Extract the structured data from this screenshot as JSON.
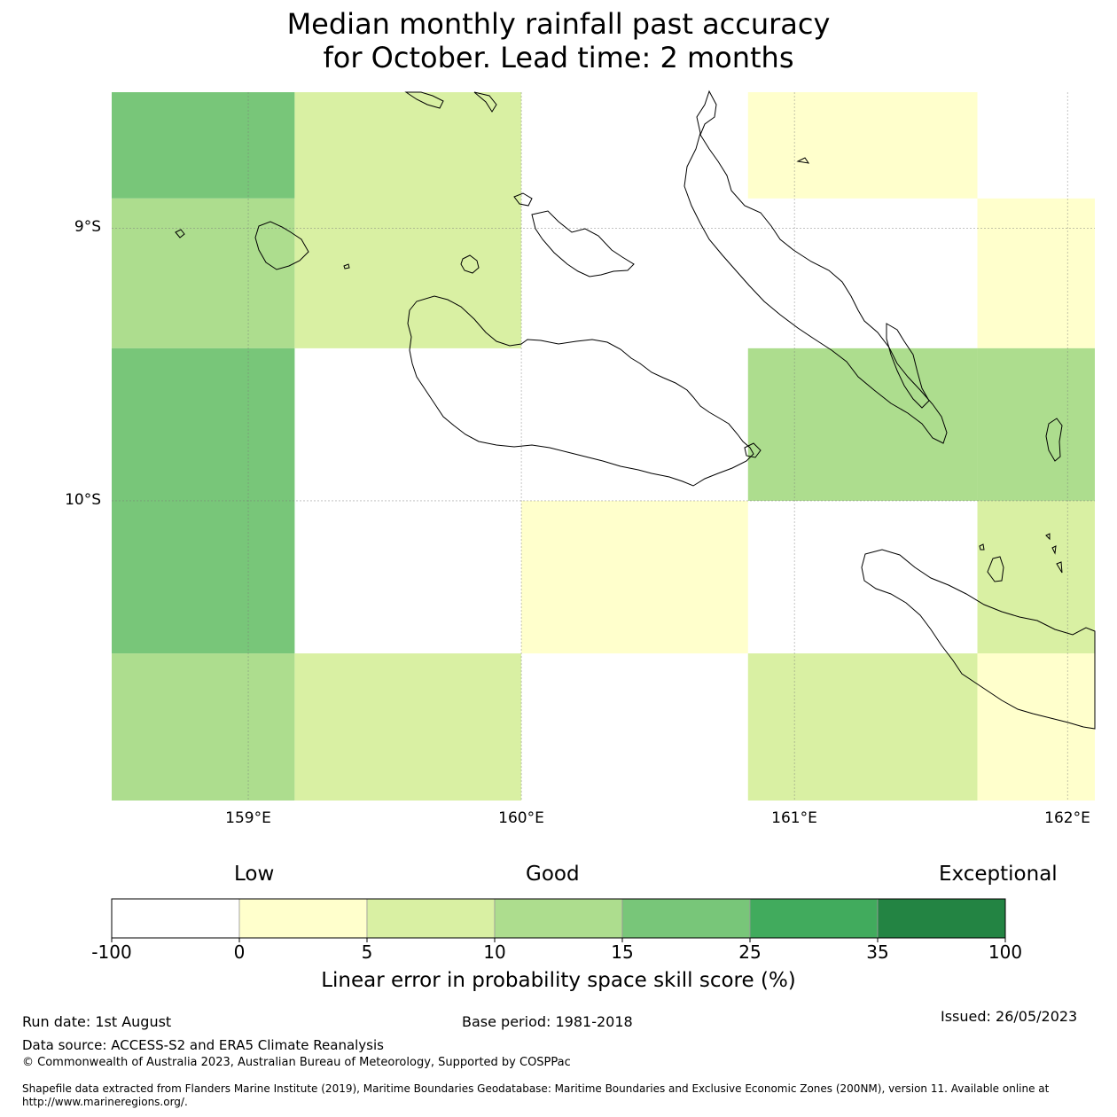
{
  "title": {
    "line1": "Median monthly rainfall past accuracy",
    "line2": "for October. Lead time: 2 months"
  },
  "map": {
    "lat_labels": [
      "9°S",
      "10°S"
    ],
    "lon_labels": [
      "159°E",
      "160°E",
      "161°E",
      "162°E"
    ],
    "lon_values": [
      159,
      160,
      161,
      162
    ],
    "lat_values": [
      -9,
      -10
    ],
    "lon_range": [
      158.5,
      162.1
    ],
    "lat_range": [
      -11.1,
      -8.5
    ],
    "cells": [
      {
        "lon": [
          158.5,
          159.17
        ],
        "lat": [
          -8.89,
          -8.5
        ],
        "bin": 4
      },
      {
        "lon": [
          158.5,
          159.17
        ],
        "lat": [
          -9.44,
          -8.89
        ],
        "bin": 3
      },
      {
        "lon": [
          158.5,
          159.17
        ],
        "lat": [
          -10.56,
          -9.44
        ],
        "bin": 4
      },
      {
        "lon": [
          158.5,
          159.17
        ],
        "lat": [
          -11.1,
          -10.56
        ],
        "bin": 3
      },
      {
        "lon": [
          159.17,
          160.0
        ],
        "lat": [
          -9.44,
          -8.5
        ],
        "bin": 2
      },
      {
        "lon": [
          159.17,
          160.0
        ],
        "lat": [
          -11.1,
          -10.56
        ],
        "bin": 2
      },
      {
        "lon": [
          160.0,
          160.83
        ],
        "lat": [
          -10.56,
          -10.0
        ],
        "bin": 1
      },
      {
        "lon": [
          160.83,
          161.67
        ],
        "lat": [
          -8.89,
          -8.5
        ],
        "bin": 1
      },
      {
        "lon": [
          160.83,
          161.67
        ],
        "lat": [
          -10.0,
          -9.44
        ],
        "bin": 3
      },
      {
        "lon": [
          160.83,
          161.67
        ],
        "lat": [
          -11.1,
          -10.56
        ],
        "bin": 2
      },
      {
        "lon": [
          161.67,
          162.1
        ],
        "lat": [
          -9.44,
          -8.89
        ],
        "bin": 1
      },
      {
        "lon": [
          161.67,
          162.1
        ],
        "lat": [
          -10.0,
          -9.44
        ],
        "bin": 3
      },
      {
        "lon": [
          161.67,
          162.1
        ],
        "lat": [
          -10.56,
          -10.0
        ],
        "bin": 2
      },
      {
        "lon": [
          161.67,
          162.1
        ],
        "lat": [
          -11.1,
          -10.56
        ],
        "bin": 1
      }
    ]
  },
  "colorbar": {
    "categories": [
      "Low",
      "Good",
      "Exceptional"
    ],
    "ticks": [
      "-100",
      "0",
      "5",
      "10",
      "15",
      "25",
      "35",
      "100"
    ],
    "colors": [
      "#ffffff",
      "#ffffcc",
      "#d9f0a3",
      "#addd8e",
      "#78c679",
      "#41ab5d",
      "#238443"
    ],
    "label": "Linear error in probability space skill score (%)"
  },
  "footer": {
    "run_date": "Run date: 1st August",
    "base_period": "Base period: 1981-2018",
    "issued": "Issued: 26/05/2023",
    "data_source": "Data source: ACCESS-S2 and ERA5 Climate Reanalysis",
    "copyright": "© Commonwealth of Australia 2023, Australian Bureau of Meteorology, Supported by COSPPac",
    "shapefile": "Shapefile data extracted from Flanders Marine Institute (2019), Maritime Boundaries Geodatabase: Maritime Boundaries and Exclusive Economic Zones (200NM), version 11. Available online at http://www.marineregions.org/."
  }
}
